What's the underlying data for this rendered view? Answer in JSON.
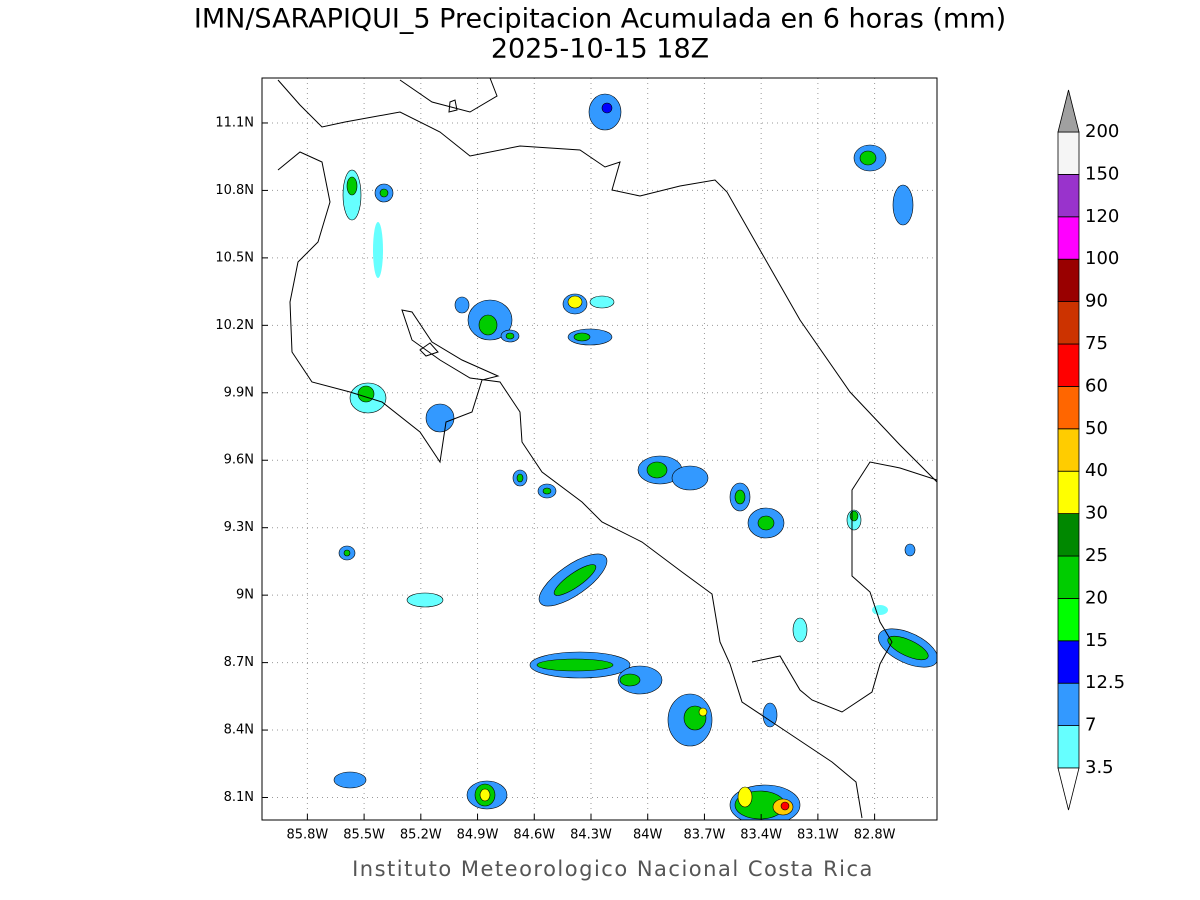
{
  "chart_data": {
    "type": "contour-map",
    "title": "IMN/SARAPIQUI_5 Precipitacion Acumulada en 6 horas (mm)",
    "subtitle": "2025-10-15 18Z",
    "footer": "Instituto Meteorologico Nacional Costa Rica",
    "xlim": [
      -86.04,
      -82.47
    ],
    "ylim": [
      8.0,
      11.3
    ],
    "grid": true,
    "xticks": [
      {
        "value": -85.8,
        "label": "85.8W"
      },
      {
        "value": -85.5,
        "label": "85.5W"
      },
      {
        "value": -85.2,
        "label": "85.2W"
      },
      {
        "value": -84.9,
        "label": "84.9W"
      },
      {
        "value": -84.6,
        "label": "84.6W"
      },
      {
        "value": -84.3,
        "label": "84.3W"
      },
      {
        "value": -84.0,
        "label": "84W"
      },
      {
        "value": -83.7,
        "label": "83.7W"
      },
      {
        "value": -83.4,
        "label": "83.4W"
      },
      {
        "value": -83.1,
        "label": "83.1W"
      },
      {
        "value": -82.8,
        "label": "82.8W"
      }
    ],
    "yticks": [
      {
        "value": 8.1,
        "label": "8.1N"
      },
      {
        "value": 8.4,
        "label": "8.4N"
      },
      {
        "value": 8.7,
        "label": "8.7N"
      },
      {
        "value": 9.0,
        "label": "9N"
      },
      {
        "value": 9.3,
        "label": "9.3N"
      },
      {
        "value": 9.6,
        "label": "9.6N"
      },
      {
        "value": 9.9,
        "label": "9.9N"
      },
      {
        "value": 10.2,
        "label": "10.2N"
      },
      {
        "value": 10.5,
        "label": "10.5N"
      },
      {
        "value": 10.8,
        "label": "10.8N"
      },
      {
        "value": 11.1,
        "label": "11.1N"
      }
    ],
    "colorbar": {
      "levels": [
        3.5,
        7,
        12.5,
        15,
        20,
        25,
        30,
        40,
        50,
        60,
        75,
        90,
        100,
        120,
        150,
        200
      ],
      "colors": [
        "#66ffff",
        "#3399ff",
        "#0000ff",
        "#00ff00",
        "#00cc00",
        "#008800",
        "#ffff00",
        "#ffcc00",
        "#ff6600",
        "#ff0000",
        "#cc3300",
        "#990000",
        "#ff00ff",
        "#9933cc",
        "#f5f5f5"
      ],
      "over_color": "#a0a0a0",
      "under_color": "#ffffff"
    }
  }
}
